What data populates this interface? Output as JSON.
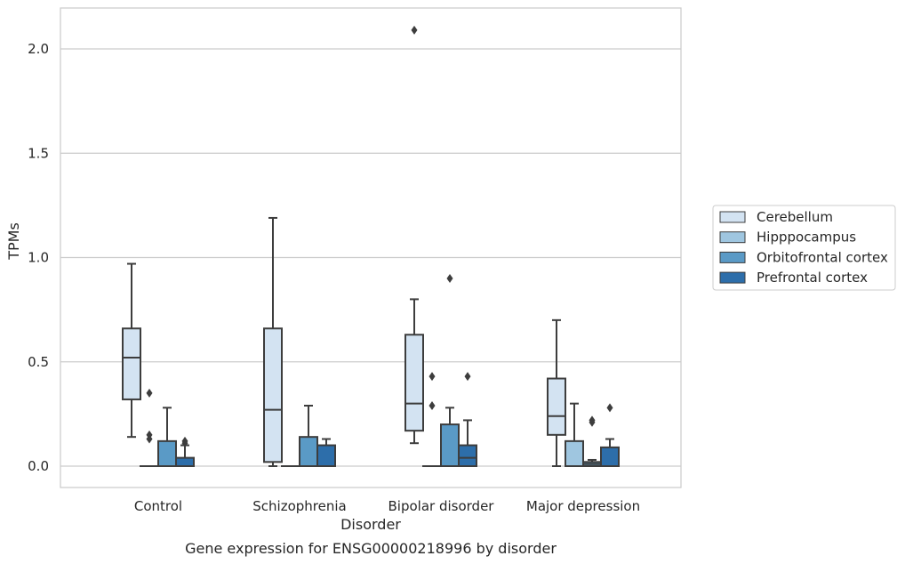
{
  "chart_data": {
    "type": "box",
    "title": "Gene expression for ENSG00000218996 by disorder",
    "xlabel": "Disorder",
    "ylabel": "TPMs",
    "ylim": [
      -0.1,
      2.2
    ],
    "yticks": [
      "0.0",
      "0.5",
      "1.0",
      "1.5",
      "2.0"
    ],
    "grid": "horizontal",
    "legend_position": "right",
    "categories": [
      "Control",
      "Schizophrenia",
      "Bipolar disorder",
      "Major depression"
    ],
    "series": [
      {
        "name": "Cerebellum",
        "color": "#d3e3f2",
        "boxes": [
          {
            "whisker_low": 0.14,
            "q1": 0.32,
            "median": 0.52,
            "q3": 0.66,
            "whisker_high": 0.97,
            "outliers": []
          },
          {
            "whisker_low": 0.0,
            "q1": 0.02,
            "median": 0.27,
            "q3": 0.66,
            "whisker_high": 1.19,
            "outliers": []
          },
          {
            "whisker_low": 0.11,
            "q1": 0.17,
            "median": 0.3,
            "q3": 0.63,
            "whisker_high": 0.8,
            "outliers": [
              2.09
            ]
          },
          {
            "whisker_low": 0.0,
            "q1": 0.15,
            "median": 0.24,
            "q3": 0.42,
            "whisker_high": 0.7,
            "outliers": []
          }
        ]
      },
      {
        "name": "Hipppocampus",
        "color": "#9fc6e0",
        "boxes": [
          {
            "whisker_low": 0.0,
            "q1": 0.0,
            "median": 0.0,
            "q3": 0.0,
            "whisker_high": 0.0,
            "outliers": [
              0.35,
              0.15,
              0.13
            ]
          },
          {
            "whisker_low": 0.0,
            "q1": 0.0,
            "median": 0.0,
            "q3": 0.0,
            "whisker_high": 0.0,
            "outliers": []
          },
          {
            "whisker_low": 0.0,
            "q1": 0.0,
            "median": 0.0,
            "q3": 0.0,
            "whisker_high": 0.0,
            "outliers": [
              0.43,
              0.29
            ]
          },
          {
            "whisker_low": 0.0,
            "q1": 0.0,
            "median": 0.0,
            "q3": 0.12,
            "whisker_high": 0.3,
            "outliers": []
          }
        ]
      },
      {
        "name": "Orbitofrontal cortex",
        "color": "#5a9ac6",
        "boxes": [
          {
            "whisker_low": 0.0,
            "q1": 0.0,
            "median": 0.0,
            "q3": 0.12,
            "whisker_high": 0.28,
            "outliers": []
          },
          {
            "whisker_low": 0.0,
            "q1": 0.0,
            "median": 0.0,
            "q3": 0.14,
            "whisker_high": 0.29,
            "outliers": []
          },
          {
            "whisker_low": 0.0,
            "q1": 0.0,
            "median": 0.0,
            "q3": 0.2,
            "whisker_high": 0.28,
            "outliers": [
              0.9
            ]
          },
          {
            "whisker_low": 0.0,
            "q1": 0.0,
            "median": 0.01,
            "q3": 0.02,
            "whisker_high": 0.03,
            "outliers": [
              0.22,
              0.21
            ]
          }
        ]
      },
      {
        "name": "Prefrontal cortex",
        "color": "#2d6eaa",
        "boxes": [
          {
            "whisker_low": 0.0,
            "q1": 0.0,
            "median": 0.0,
            "q3": 0.04,
            "whisker_high": 0.1,
            "outliers": [
              0.12,
              0.11
            ]
          },
          {
            "whisker_low": 0.0,
            "q1": 0.0,
            "median": 0.0,
            "q3": 0.1,
            "whisker_high": 0.13,
            "outliers": []
          },
          {
            "whisker_low": 0.0,
            "q1": 0.0,
            "median": 0.04,
            "q3": 0.1,
            "whisker_high": 0.22,
            "outliers": [
              0.43
            ]
          },
          {
            "whisker_low": 0.0,
            "q1": 0.0,
            "median": 0.0,
            "q3": 0.09,
            "whisker_high": 0.13,
            "outliers": [
              0.28
            ]
          }
        ]
      }
    ]
  }
}
